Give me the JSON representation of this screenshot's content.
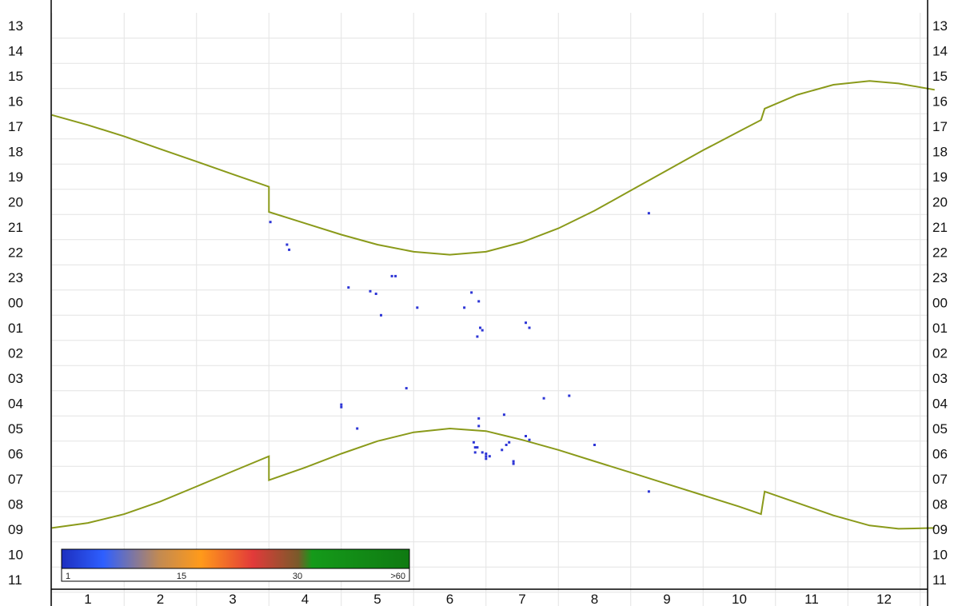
{
  "chart_data": {
    "type": "scatter",
    "title": "",
    "xlabel": "",
    "ylabel": "",
    "x_ticks": [
      "1",
      "2",
      "3",
      "4",
      "5",
      "6",
      "7",
      "8",
      "9",
      "10",
      "11",
      "12"
    ],
    "y_ticks": [
      "13",
      "14",
      "15",
      "16",
      "17",
      "18",
      "19",
      "20",
      "21",
      "22",
      "23",
      "00",
      "01",
      "02",
      "03",
      "04",
      "05",
      "06",
      "07",
      "08",
      "09",
      "10",
      "11"
    ],
    "y_axis_note": "hour of day, 13 at top to 11 at bottom; same labels on left and right",
    "xlim": [
      0.5,
      12.7
    ],
    "ylim_hours_from_13": [
      0,
      22.4
    ],
    "grid": true,
    "curves": [
      {
        "name": "",
        "color": "#8a9a1a",
        "points": [
          [
            0.5,
            3.55
          ],
          [
            1.0,
            3.95
          ],
          [
            1.5,
            4.4
          ],
          [
            2.0,
            4.9
          ],
          [
            2.5,
            5.4
          ],
          [
            3.0,
            5.9
          ],
          [
            3.5,
            6.4
          ],
          [
            3.5,
            7.4
          ],
          [
            4.0,
            7.85
          ],
          [
            4.5,
            8.3
          ],
          [
            5.0,
            8.7
          ],
          [
            5.5,
            8.98
          ],
          [
            6.0,
            9.1
          ],
          [
            6.5,
            8.98
          ],
          [
            7.0,
            8.6
          ],
          [
            7.5,
            8.05
          ],
          [
            8.0,
            7.35
          ],
          [
            8.5,
            6.55
          ],
          [
            9.0,
            5.75
          ],
          [
            9.5,
            4.95
          ],
          [
            10.0,
            4.2
          ],
          [
            10.3,
            3.75
          ],
          [
            10.35,
            3.3
          ],
          [
            10.8,
            2.75
          ],
          [
            11.3,
            2.35
          ],
          [
            11.8,
            2.2
          ],
          [
            12.2,
            2.3
          ],
          [
            12.7,
            2.55
          ]
        ]
      },
      {
        "name": "",
        "color": "#8a9a1a",
        "points": [
          [
            0.5,
            19.95
          ],
          [
            1.0,
            19.75
          ],
          [
            1.5,
            19.4
          ],
          [
            2.0,
            18.9
          ],
          [
            2.5,
            18.3
          ],
          [
            3.0,
            17.7
          ],
          [
            3.5,
            17.1
          ],
          [
            3.5,
            18.05
          ],
          [
            4.0,
            17.55
          ],
          [
            4.5,
            17.0
          ],
          [
            5.0,
            16.5
          ],
          [
            5.5,
            16.15
          ],
          [
            6.0,
            16.0
          ],
          [
            6.5,
            16.1
          ],
          [
            7.0,
            16.45
          ],
          [
            7.5,
            16.85
          ],
          [
            8.0,
            17.3
          ],
          [
            8.5,
            17.75
          ],
          [
            9.0,
            18.2
          ],
          [
            9.5,
            18.65
          ],
          [
            10.0,
            19.1
          ],
          [
            10.3,
            19.4
          ],
          [
            10.35,
            18.5
          ],
          [
            10.8,
            18.95
          ],
          [
            11.3,
            19.45
          ],
          [
            11.8,
            19.85
          ],
          [
            12.2,
            19.98
          ],
          [
            12.7,
            19.95
          ]
        ]
      }
    ],
    "points": [
      {
        "x": 3.52,
        "y": 7.8
      },
      {
        "x": 3.75,
        "y": 8.7
      },
      {
        "x": 3.78,
        "y": 8.9
      },
      {
        "x": 4.6,
        "y": 10.4
      },
      {
        "x": 4.9,
        "y": 10.55
      },
      {
        "x": 4.98,
        "y": 10.65
      },
      {
        "x": 5.05,
        "y": 11.5
      },
      {
        "x": 5.2,
        "y": 9.95
      },
      {
        "x": 5.25,
        "y": 9.95
      },
      {
        "x": 5.55,
        "y": 11.2
      },
      {
        "x": 5.4,
        "y": 14.4
      },
      {
        "x": 4.5,
        "y": 15.05
      },
      {
        "x": 4.5,
        "y": 15.15
      },
      {
        "x": 4.72,
        "y": 16.0
      },
      {
        "x": 6.2,
        "y": 11.2
      },
      {
        "x": 6.3,
        "y": 10.6
      },
      {
        "x": 6.4,
        "y": 10.95
      },
      {
        "x": 6.42,
        "y": 12.0
      },
      {
        "x": 6.45,
        "y": 12.1
      },
      {
        "x": 6.38,
        "y": 12.35
      },
      {
        "x": 6.4,
        "y": 15.6
      },
      {
        "x": 6.4,
        "y": 15.9
      },
      {
        "x": 6.33,
        "y": 16.55
      },
      {
        "x": 6.35,
        "y": 16.75
      },
      {
        "x": 6.38,
        "y": 16.75
      },
      {
        "x": 6.35,
        "y": 16.95
      },
      {
        "x": 6.45,
        "y": 16.95
      },
      {
        "x": 6.5,
        "y": 17.0
      },
      {
        "x": 6.5,
        "y": 17.1
      },
      {
        "x": 6.5,
        "y": 17.2
      },
      {
        "x": 6.55,
        "y": 17.1
      },
      {
        "x": 6.72,
        "y": 16.85
      },
      {
        "x": 6.78,
        "y": 16.65
      },
      {
        "x": 6.82,
        "y": 16.55
      },
      {
        "x": 6.88,
        "y": 17.3
      },
      {
        "x": 6.88,
        "y": 17.4
      },
      {
        "x": 6.75,
        "y": 15.45
      },
      {
        "x": 7.05,
        "y": 11.8
      },
      {
        "x": 7.1,
        "y": 12.0
      },
      {
        "x": 7.05,
        "y": 16.3
      },
      {
        "x": 7.1,
        "y": 16.45
      },
      {
        "x": 7.3,
        "y": 14.8
      },
      {
        "x": 7.65,
        "y": 14.7
      },
      {
        "x": 8.0,
        "y": 16.65
      },
      {
        "x": 8.75,
        "y": 7.45
      },
      {
        "x": 8.75,
        "y": 18.5
      }
    ],
    "point_color": "#2d35d6",
    "colorbar": {
      "labels": [
        "1",
        "15",
        "30",
        ">60"
      ],
      "colors": [
        "#1d2fbf",
        "#2e5fff",
        "#c28a52",
        "#ff9a1a",
        "#e23a3a",
        "#7a5a2a",
        "#159a1a",
        "#0f7a12"
      ]
    }
  }
}
